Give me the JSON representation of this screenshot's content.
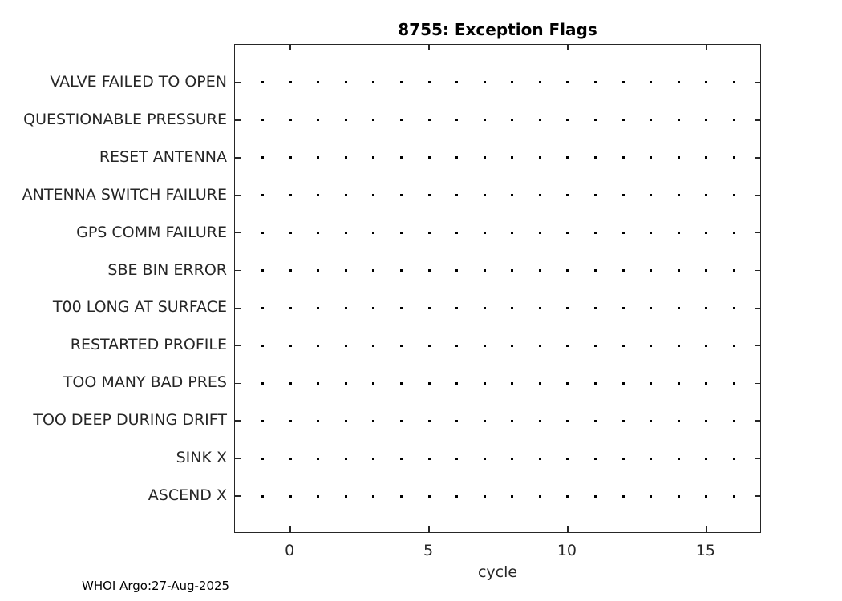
{
  "header": {
    "title": "8755: Exception Flags"
  },
  "footer": {
    "credit": "WHOI Argo:27-Aug-2025"
  },
  "colors": {
    "background": "#ffffff",
    "text": "#262626",
    "title": "#000000",
    "axis": "#262626",
    "marker": "#000000"
  },
  "chart_data": {
    "type": "scatter",
    "title": "8755: Exception Flags",
    "xlabel": "cycle",
    "ylabel": "",
    "categories": [
      "VALVE FAILED TO OPEN",
      "QUESTIONABLE PRESSURE",
      "RESET ANTENNA",
      "ANTENNA SWITCH FAILURE",
      "GPS COMM FAILURE",
      "SBE BIN ERROR",
      "T00 LONG AT SURFACE",
      "RESTARTED PROFILE",
      "TOO MANY BAD PRES",
      "TOO DEEP DURING DRIFT",
      "SINK X",
      "ASCEND X"
    ],
    "cycles": [
      -1,
      0,
      1,
      2,
      3,
      4,
      5,
      6,
      7,
      8,
      9,
      10,
      11,
      12,
      13,
      14,
      15,
      16
    ],
    "points_note": "every category row has one point marker at every cycle value listed in cycles",
    "x_ticks": [
      0,
      5,
      10,
      15
    ],
    "xlim": [
      -2,
      17
    ],
    "grid": false,
    "legend": "none",
    "marker_style": "point",
    "box": true,
    "tick_direction": "in"
  }
}
